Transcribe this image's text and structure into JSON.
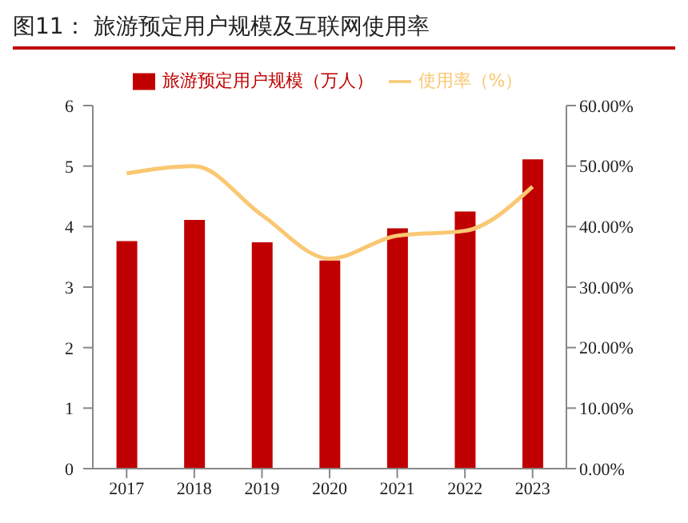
{
  "chart_data": {
    "type": "bar",
    "title": "图11：  旅游预定用户规模及互联网使用率",
    "categories": [
      "2017",
      "2018",
      "2019",
      "2020",
      "2021",
      "2022",
      "2023"
    ],
    "series": [
      {
        "name": "旅游预定用户规模（万人）",
        "color": "#c00000",
        "values": [
          3.76,
          4.11,
          3.74,
          3.44,
          3.97,
          4.25,
          5.11
        ]
      },
      {
        "name": "使用率（%）",
        "type": "line",
        "axis": "y2",
        "color": "#fac772",
        "values": [
          48.8,
          50.0,
          41.9,
          34.7,
          38.5,
          39.3,
          46.6
        ]
      }
    ],
    "ylim": [
      0,
      6
    ],
    "yticks": [
      0,
      1,
      2,
      3,
      4,
      5,
      6
    ],
    "y2lim": [
      0,
      60
    ],
    "y2ticks": [
      {
        "value": 0,
        "label": "0.00%"
      },
      {
        "value": 10,
        "label": "10.00%"
      },
      {
        "value": 20,
        "label": "20.00%"
      },
      {
        "value": 30,
        "label": "30.00%"
      },
      {
        "value": 40,
        "label": "40.00%"
      },
      {
        "value": 50,
        "label": "50.00%"
      },
      {
        "value": 60,
        "label": "60.00%"
      }
    ],
    "legend": "top",
    "marker": "none",
    "grid": false
  }
}
